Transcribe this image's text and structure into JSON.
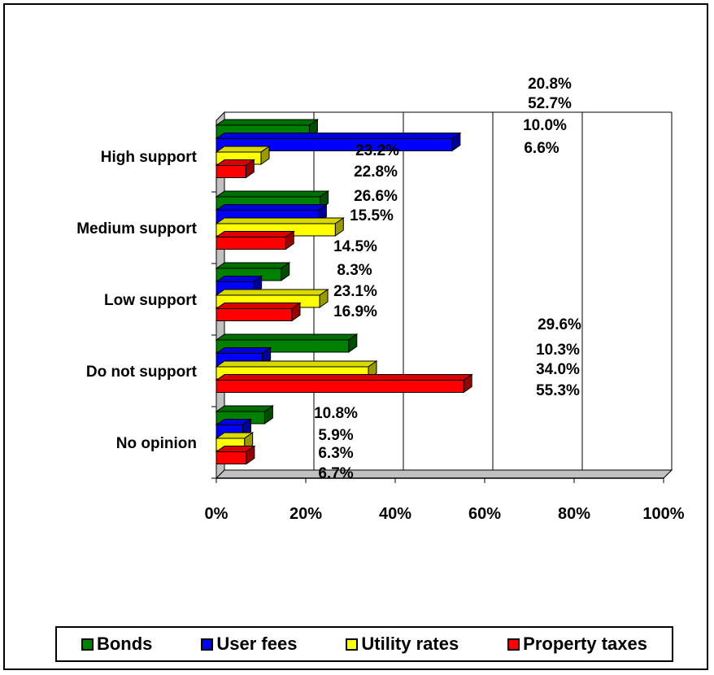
{
  "chart_data": {
    "type": "bar",
    "orientation": "horizontal",
    "three_d": true,
    "categories": [
      "High support",
      "Medium support",
      "Low support",
      "Do not support",
      "No opinion"
    ],
    "series": [
      {
        "name": "Bonds",
        "color": "#008000",
        "values": [
          20.8,
          23.2,
          14.5,
          29.6,
          10.8
        ],
        "labels": [
          "20.8%",
          "23.2%",
          "14.5%",
          "29.6%",
          "10.8%"
        ]
      },
      {
        "name": "User fees",
        "color": "#0000ff",
        "values": [
          52.7,
          22.8,
          8.3,
          10.3,
          5.9
        ],
        "labels": [
          "52.7%",
          "22.8%",
          "8.3%",
          "10.3%",
          "5.9%"
        ]
      },
      {
        "name": "Utility rates",
        "color": "#ffff00",
        "values": [
          10.0,
          26.6,
          23.1,
          34.0,
          6.3
        ],
        "labels": [
          "10.0%",
          "26.6%",
          "23.1%",
          "34.0%",
          "6.3%"
        ]
      },
      {
        "name": "Property taxes",
        "color": "#ff0000",
        "values": [
          6.6,
          15.5,
          16.9,
          55.3,
          6.7
        ],
        "labels": [
          "6.6%",
          "15.5%",
          "16.9%",
          "55.3%",
          "6.7%"
        ]
      }
    ],
    "xlim": [
      0,
      100
    ],
    "xticks": [
      "0%",
      "20%",
      "40%",
      "60%",
      "80%",
      "100%"
    ],
    "grid": true,
    "legend_position": "bottom"
  }
}
